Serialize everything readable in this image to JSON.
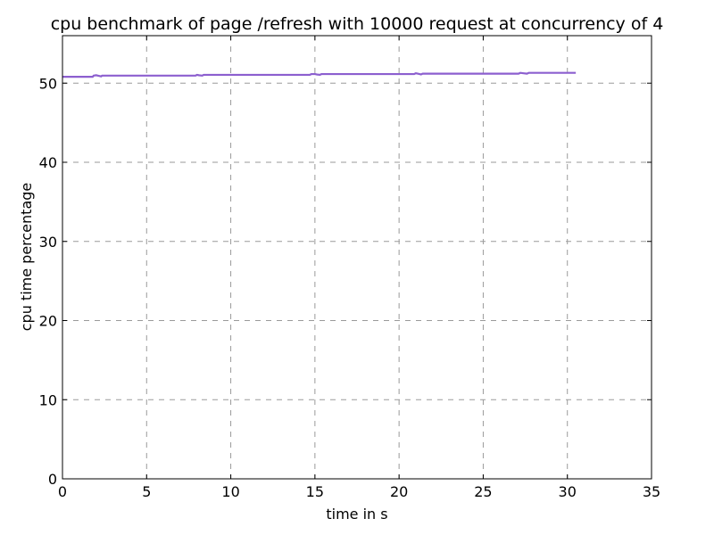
{
  "chart_data": {
    "type": "line",
    "title": "cpu benchmark of page /refresh with 10000 request at concurrency of 4",
    "xlabel": "time in s",
    "ylabel": "cpu time percentage",
    "xlim": [
      0,
      35
    ],
    "ylim": [
      0,
      56
    ],
    "x_ticks": [
      0,
      5,
      10,
      15,
      20,
      25,
      30,
      35
    ],
    "y_ticks": [
      0,
      10,
      20,
      30,
      40,
      50
    ],
    "grid": true,
    "legend": "none",
    "series": [
      {
        "color": "#8c5fcf",
        "x": [
          0,
          1.8,
          1.85,
          2.0,
          2.1,
          2.3,
          2.35,
          7.9,
          8.0,
          8.1,
          8.3,
          8.4,
          8.5,
          14.7,
          14.8,
          15.0,
          15.1,
          15.3,
          15.4,
          20.9,
          21.0,
          21.1,
          21.3,
          21.4,
          27.1,
          27.2,
          27.4,
          27.6,
          27.7,
          30.5
        ],
        "y": [
          50.8,
          50.8,
          50.95,
          51.0,
          50.95,
          50.85,
          50.95,
          50.95,
          51.05,
          51.0,
          50.95,
          51.05,
          51.05,
          51.05,
          51.15,
          51.15,
          51.1,
          51.05,
          51.15,
          51.15,
          51.25,
          51.2,
          51.1,
          51.2,
          51.2,
          51.3,
          51.25,
          51.2,
          51.3,
          51.3
        ]
      }
    ]
  }
}
